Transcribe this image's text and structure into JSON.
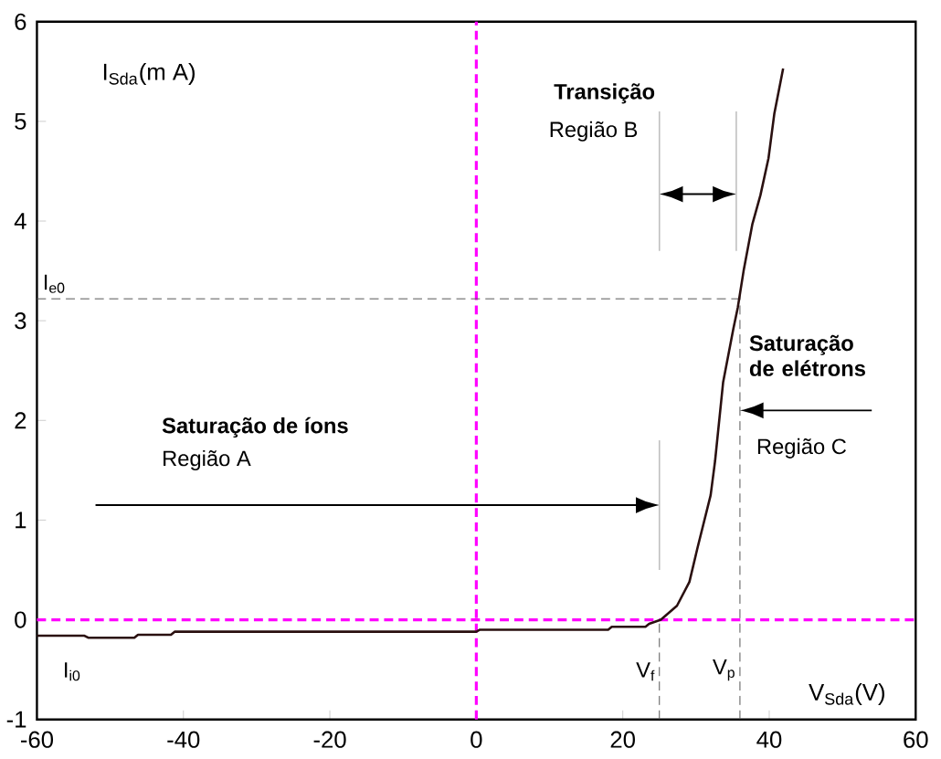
{
  "chart_data": {
    "type": "line",
    "xlabel": "V$_{Sda}$(V)",
    "ylabel": "I$_{Sda}$(m A)",
    "x": [
      -60,
      -53.5,
      -53,
      -46.7,
      -46.2,
      -41.7,
      -41.2,
      0,
      0.5,
      18,
      18.5,
      23.1,
      23.6,
      25.2,
      27.4,
      29.1,
      30.2,
      32,
      32.6,
      33.7,
      35.1,
      35.7,
      36.5,
      37.7,
      38.8,
      39.9,
      40.7,
      41.9
    ],
    "series": [
      {
        "color": "#2a1010",
        "values": [
          -0.16,
          -0.16,
          -0.18,
          -0.18,
          -0.15,
          -0.15,
          -0.12,
          -0.12,
          -0.1,
          -0.1,
          -0.07,
          -0.07,
          -0.04,
          0.0,
          0.14,
          0.38,
          0.72,
          1.25,
          1.59,
          2.38,
          2.92,
          3.13,
          3.5,
          3.97,
          4.26,
          4.63,
          5.08,
          5.53
        ]
      }
    ],
    "xlim": [
      -60,
      60
    ],
    "ylim": [
      -1,
      6
    ],
    "xticks": [
      -60,
      -40,
      -20,
      0,
      20,
      40,
      60
    ],
    "yticks": [
      -1,
      0,
      1,
      2,
      3,
      4,
      5,
      6
    ],
    "grid": false,
    "marker": "none",
    "line_style": "solid",
    "ref_lines": [
      {
        "axis": "x",
        "value": 0,
        "color": "#ff00ff",
        "line_style": "dashed"
      },
      {
        "axis": "y",
        "value": 0,
        "color": "#ff00ff",
        "line_style": "dashed"
      },
      {
        "axis": "y",
        "value": 3.22,
        "label": "I$_{e0}$",
        "color": "#555555",
        "line_style": "dashed"
      },
      {
        "axis": "x",
        "value": 25,
        "label": "V$_{f}$",
        "color": "#555555",
        "line_style": "dashed"
      },
      {
        "axis": "x",
        "value": 36,
        "label": "V$_{p}$",
        "color": "#555555",
        "line_style": "dashed"
      }
    ],
    "annotations": [
      "Saturação de íons",
      "Região A",
      "Transição",
      "Região B",
      "Saturação de elétrons",
      "Região C",
      "I$_{i0}$"
    ]
  }
}
